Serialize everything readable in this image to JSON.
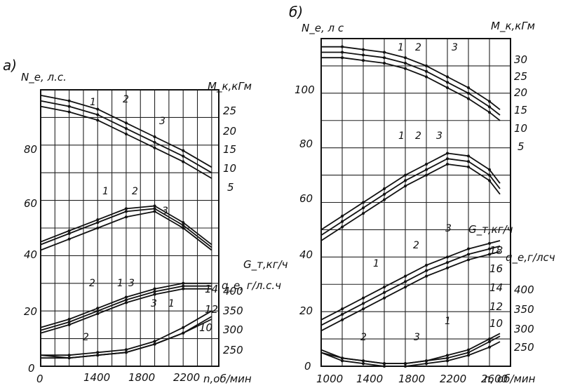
{
  "chart_data": [
    {
      "type": "line",
      "panel_label": "a)",
      "xlabel": "n,об/мин",
      "ylabel_left": "N_e, л.с.",
      "ylabel_right": [
        "M_к,кГм",
        "G_т,кг/ч",
        "q_e, г/л.с.ч"
      ],
      "x_ticks": [
        "1400",
        "1800",
        "2200"
      ],
      "x_origin_label": "0",
      "y_ticks_left": [
        "20",
        "40",
        "60",
        "80"
      ],
      "y_origin_label": "0",
      "torque_ticks": [
        "25",
        "20",
        "15",
        "10",
        "5"
      ],
      "fuel_rate_ticks": [
        "14",
        "12",
        "10"
      ],
      "sfc_ticks": [
        "400",
        "350",
        "300",
        "250"
      ],
      "xlim": [
        0,
        2500
      ],
      "ylim": [
        0,
        100
      ],
      "grid": true,
      "curve_numbers": [
        "1",
        "2",
        "3"
      ],
      "series": [
        {
          "group": "torque",
          "number": "1",
          "x": [
            0,
            400,
            800,
            1200,
            1600,
            2000,
            2400
          ],
          "y": [
            98,
            96,
            93,
            88,
            83,
            78,
            72
          ]
        },
        {
          "group": "torque",
          "number": "2",
          "x": [
            0,
            400,
            800,
            1200,
            1600,
            2000,
            2400
          ],
          "y": [
            96,
            94,
            91,
            86,
            81,
            76,
            70
          ]
        },
        {
          "group": "torque",
          "number": "3",
          "x": [
            0,
            400,
            800,
            1200,
            1600,
            2000,
            2400
          ],
          "y": [
            94,
            92,
            89,
            84,
            79,
            74,
            68
          ]
        },
        {
          "group": "power",
          "number": "1",
          "x": [
            0,
            400,
            800,
            1200,
            1600,
            2000,
            2400
          ],
          "y": [
            45,
            49,
            53,
            57,
            58,
            52,
            44
          ]
        },
        {
          "group": "power",
          "number": "2",
          "x": [
            0,
            400,
            800,
            1200,
            1600,
            2000,
            2400
          ],
          "y": [
            44,
            48,
            52,
            56,
            57,
            51,
            43
          ]
        },
        {
          "group": "power",
          "number": "3",
          "x": [
            0,
            400,
            800,
            1200,
            1600,
            2000,
            2400
          ],
          "y": [
            42,
            46,
            50,
            54,
            56,
            50,
            42
          ]
        },
        {
          "group": "fuel_rate",
          "number": "1",
          "x": [
            0,
            400,
            800,
            1200,
            1600,
            2000,
            2400
          ],
          "y": [
            14,
            17,
            21,
            25,
            28,
            30,
            30
          ]
        },
        {
          "group": "fuel_rate",
          "number": "2",
          "x": [
            0,
            400,
            800,
            1200,
            1600,
            2000,
            2400
          ],
          "y": [
            13,
            16,
            20,
            24,
            27,
            29,
            29
          ]
        },
        {
          "group": "fuel_rate",
          "number": "3",
          "x": [
            0,
            400,
            800,
            1200,
            1600,
            2000,
            2400
          ],
          "y": [
            12,
            15,
            19,
            23,
            26,
            28,
            28
          ]
        },
        {
          "group": "sfc",
          "number": "1",
          "x": [
            0,
            400,
            800,
            1200,
            1600,
            2000,
            2400
          ],
          "y": [
            4,
            4,
            5,
            6,
            9,
            14,
            20
          ]
        },
        {
          "group": "sfc",
          "number": "2",
          "x": [
            0,
            400,
            800,
            1200,
            1600,
            2000,
            2400
          ],
          "y": [
            4,
            3,
            4,
            5,
            8,
            12,
            17
          ]
        },
        {
          "group": "sfc",
          "number": "3",
          "x": [
            0,
            400,
            800,
            1200,
            1600,
            2000,
            2400
          ],
          "y": [
            3,
            3,
            4,
            5,
            8,
            12,
            18
          ]
        }
      ]
    },
    {
      "type": "line",
      "panel_label": "б)",
      "xlabel": "n, об/мин",
      "ylabel_left": "N_e, л с",
      "ylabel_right": [
        "M_к,кГм",
        "G_т,кг/ч",
        "q_e,г/лсч"
      ],
      "x_ticks": [
        "1000",
        "1400",
        "1800",
        "2200",
        "2600"
      ],
      "y_ticks_left": [
        "0",
        "20",
        "40",
        "60",
        "80",
        "100"
      ],
      "torque_ticks": [
        "30",
        "25",
        "20",
        "15",
        "10",
        "5"
      ],
      "fuel_rate_ticks": [
        "18",
        "16",
        "14",
        "12",
        "10"
      ],
      "sfc_ticks": [
        "400",
        "350",
        "300",
        "250"
      ],
      "xlim": [
        1000,
        2800
      ],
      "ylim": [
        0,
        120
      ],
      "grid": true,
      "curve_numbers": [
        "1",
        "2",
        "3"
      ],
      "series": [
        {
          "group": "torque",
          "number": "1",
          "x": [
            1000,
            1200,
            1400,
            1600,
            1800,
            2000,
            2200,
            2400,
            2600,
            2700
          ],
          "y": [
            117,
            117,
            116,
            115,
            113,
            110,
            106,
            102,
            97,
            94
          ]
        },
        {
          "group": "torque",
          "number": "2",
          "x": [
            1000,
            1200,
            1400,
            1600,
            1800,
            2000,
            2200,
            2400,
            2600,
            2700
          ],
          "y": [
            115,
            115,
            114,
            113,
            111,
            108,
            104,
            100,
            95,
            92
          ]
        },
        {
          "group": "torque",
          "number": "3",
          "x": [
            1000,
            1200,
            1400,
            1600,
            1800,
            2000,
            2200,
            2400,
            2600,
            2700
          ],
          "y": [
            113,
            113,
            112,
            111,
            109,
            106,
            102,
            98,
            93,
            90
          ]
        },
        {
          "group": "power",
          "number": "1",
          "x": [
            1000,
            1200,
            1400,
            1600,
            1800,
            2000,
            2200,
            2400,
            2600,
            2700
          ],
          "y": [
            50,
            55,
            60,
            65,
            70,
            74,
            78,
            77,
            72,
            67
          ]
        },
        {
          "group": "power",
          "number": "2",
          "x": [
            1000,
            1200,
            1400,
            1600,
            1800,
            2000,
            2200,
            2400,
            2600,
            2700
          ],
          "y": [
            48,
            53,
            58,
            63,
            68,
            72,
            76,
            75,
            70,
            65
          ]
        },
        {
          "group": "power",
          "number": "3",
          "x": [
            1000,
            1200,
            1400,
            1600,
            1800,
            2000,
            2200,
            2400,
            2600,
            2700
          ],
          "y": [
            46,
            51,
            56,
            61,
            66,
            70,
            74,
            73,
            68,
            63
          ]
        },
        {
          "group": "fuel_rate",
          "number": "1",
          "x": [
            1000,
            1200,
            1400,
            1600,
            1800,
            2000,
            2200,
            2400,
            2600,
            2700
          ],
          "y": [
            17,
            21,
            25,
            29,
            33,
            37,
            40,
            43,
            45,
            46
          ]
        },
        {
          "group": "fuel_rate",
          "number": "2",
          "x": [
            1000,
            1200,
            1400,
            1600,
            1800,
            2000,
            2200,
            2400,
            2600,
            2700
          ],
          "y": [
            15,
            19,
            23,
            27,
            31,
            35,
            38,
            41,
            43,
            44
          ]
        },
        {
          "group": "fuel_rate",
          "number": "3",
          "x": [
            1000,
            1200,
            1400,
            1600,
            1800,
            2000,
            2200,
            2400,
            2600,
            2700
          ],
          "y": [
            13,
            17,
            21,
            25,
            29,
            33,
            36,
            39,
            41,
            42
          ]
        },
        {
          "group": "sfc",
          "number": "1",
          "x": [
            1000,
            1200,
            1400,
            1600,
            1800,
            2000,
            2200,
            2400,
            2600,
            2700
          ],
          "y": [
            6,
            3,
            2,
            1,
            1,
            2,
            4,
            6,
            10,
            12
          ]
        },
        {
          "group": "sfc",
          "number": "2",
          "x": [
            1000,
            1200,
            1400,
            1600,
            1800,
            2000,
            2200,
            2400,
            2600,
            2700
          ],
          "y": [
            5,
            2,
            1,
            0,
            0,
            1,
            2,
            4,
            7,
            9
          ]
        },
        {
          "group": "sfc",
          "number": "3",
          "x": [
            1000,
            1200,
            1400,
            1600,
            1800,
            2000,
            2200,
            2400,
            2600,
            2700
          ],
          "y": [
            5,
            3,
            2,
            1,
            1,
            2,
            3,
            5,
            9,
            11
          ]
        }
      ]
    }
  ]
}
